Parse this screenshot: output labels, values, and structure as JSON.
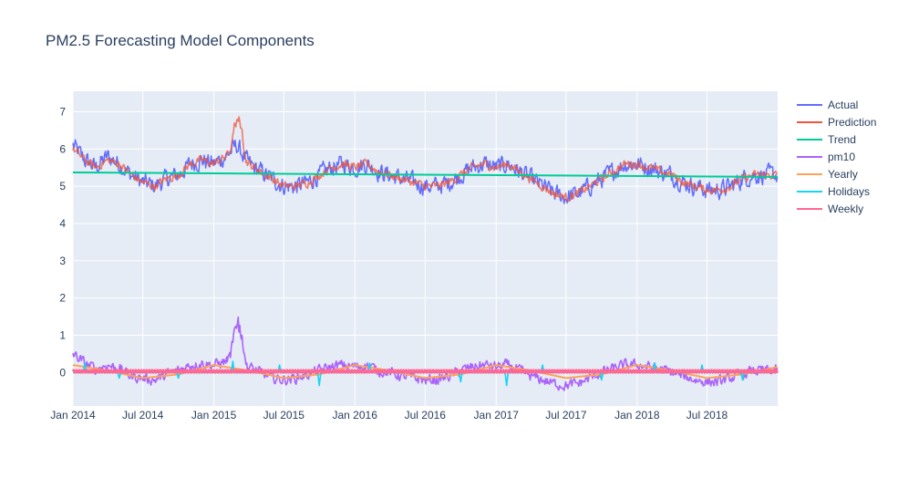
{
  "chart_data": {
    "type": "line",
    "title": "PM2.5 Forecasting Model Components",
    "xlabel": "",
    "ylabel": "",
    "x_range": [
      "2014-01-01",
      "2018-12-31"
    ],
    "x_ticks": [
      {
        "date": "2014-01-01",
        "label": "Jan 2014"
      },
      {
        "date": "2014-07-01",
        "label": "Jul 2014"
      },
      {
        "date": "2015-01-01",
        "label": "Jan 2015"
      },
      {
        "date": "2015-07-01",
        "label": "Jul 2015"
      },
      {
        "date": "2016-01-01",
        "label": "Jan 2016"
      },
      {
        "date": "2016-07-01",
        "label": "Jul 2016"
      },
      {
        "date": "2017-01-01",
        "label": "Jan 2017"
      },
      {
        "date": "2017-07-01",
        "label": "Jul 2017"
      },
      {
        "date": "2018-01-01",
        "label": "Jan 2018"
      },
      {
        "date": "2018-07-01",
        "label": "Jul 2018"
      }
    ],
    "ylim": [
      -0.9,
      7.55
    ],
    "y_ticks": [
      0,
      1,
      2,
      3,
      4,
      5,
      6,
      7
    ],
    "grid": true,
    "legend": "right",
    "series": [
      {
        "name": "Actual",
        "color": "#636efa",
        "points": [
          [
            "2014-01-01",
            6.1
          ],
          [
            "2014-02-01",
            5.7
          ],
          [
            "2014-03-01",
            5.5
          ],
          [
            "2014-04-01",
            5.8
          ],
          [
            "2014-05-01",
            5.6
          ],
          [
            "2014-06-01",
            5.3
          ],
          [
            "2014-07-01",
            5.1
          ],
          [
            "2014-08-01",
            5.0
          ],
          [
            "2014-09-01",
            5.2
          ],
          [
            "2014-10-01",
            5.3
          ],
          [
            "2014-11-01",
            5.6
          ],
          [
            "2014-12-01",
            5.7
          ],
          [
            "2015-01-01",
            5.6
          ],
          [
            "2015-02-01",
            5.8
          ],
          [
            "2015-03-01",
            6.1
          ],
          [
            "2015-04-01",
            5.6
          ],
          [
            "2015-05-01",
            5.4
          ],
          [
            "2015-06-01",
            5.2
          ],
          [
            "2015-07-01",
            5.0
          ],
          [
            "2015-08-01",
            5.0
          ],
          [
            "2015-09-01",
            5.1
          ],
          [
            "2015-10-01",
            5.3
          ],
          [
            "2015-11-01",
            5.5
          ],
          [
            "2015-12-01",
            5.6
          ],
          [
            "2016-01-01",
            5.5
          ],
          [
            "2016-02-01",
            5.6
          ],
          [
            "2016-03-01",
            5.4
          ],
          [
            "2016-04-01",
            5.3
          ],
          [
            "2016-05-01",
            5.2
          ],
          [
            "2016-06-01",
            5.1
          ],
          [
            "2016-07-01",
            5.0
          ],
          [
            "2016-08-01",
            5.0
          ],
          [
            "2016-09-01",
            5.1
          ],
          [
            "2016-10-01",
            5.3
          ],
          [
            "2016-11-01",
            5.5
          ],
          [
            "2016-12-01",
            5.6
          ],
          [
            "2017-01-01",
            5.5
          ],
          [
            "2017-02-01",
            5.6
          ],
          [
            "2017-03-01",
            5.4
          ],
          [
            "2017-04-01",
            5.2
          ],
          [
            "2017-05-01",
            5.0
          ],
          [
            "2017-06-01",
            4.8
          ],
          [
            "2017-07-01",
            4.7
          ],
          [
            "2017-08-01",
            4.8
          ],
          [
            "2017-09-01",
            5.0
          ],
          [
            "2017-10-01",
            5.2
          ],
          [
            "2017-11-01",
            5.4
          ],
          [
            "2017-12-01",
            5.6
          ],
          [
            "2018-01-01",
            5.6
          ],
          [
            "2018-02-01",
            5.5
          ],
          [
            "2018-03-01",
            5.4
          ],
          [
            "2018-04-01",
            5.3
          ],
          [
            "2018-05-01",
            5.1
          ],
          [
            "2018-06-01",
            5.0
          ],
          [
            "2018-07-01",
            4.9
          ],
          [
            "2018-08-01",
            4.9
          ],
          [
            "2018-09-01",
            5.0
          ],
          [
            "2018-10-01",
            5.2
          ],
          [
            "2018-11-01",
            5.3
          ],
          [
            "2018-12-31",
            5.3
          ]
        ]
      },
      {
        "name": "Prediction",
        "color": "#ef553b",
        "points": [
          [
            "2014-01-01",
            6.0
          ],
          [
            "2014-02-01",
            5.7
          ],
          [
            "2014-03-01",
            5.5
          ],
          [
            "2014-04-01",
            5.7
          ],
          [
            "2014-05-01",
            5.6
          ],
          [
            "2014-06-01",
            5.3
          ],
          [
            "2014-07-01",
            5.1
          ],
          [
            "2014-08-01",
            5.0
          ],
          [
            "2014-09-01",
            5.2
          ],
          [
            "2014-10-01",
            5.3
          ],
          [
            "2014-11-01",
            5.6
          ],
          [
            "2014-12-01",
            5.7
          ],
          [
            "2015-01-01",
            5.6
          ],
          [
            "2015-02-01",
            5.8
          ],
          [
            "2015-03-01",
            6.2
          ],
          [
            "2015-04-01",
            5.6
          ],
          [
            "2015-05-01",
            5.4
          ],
          [
            "2015-06-01",
            5.2
          ],
          [
            "2015-07-01",
            5.0
          ],
          [
            "2015-08-01",
            5.0
          ],
          [
            "2015-09-01",
            5.1
          ],
          [
            "2015-10-01",
            5.3
          ],
          [
            "2015-11-01",
            5.5
          ],
          [
            "2015-12-01",
            5.6
          ],
          [
            "2016-01-01",
            5.5
          ],
          [
            "2016-02-01",
            5.6
          ],
          [
            "2016-03-01",
            5.4
          ],
          [
            "2016-04-01",
            5.3
          ],
          [
            "2016-05-01",
            5.2
          ],
          [
            "2016-06-01",
            5.1
          ],
          [
            "2016-07-01",
            5.0
          ],
          [
            "2016-08-01",
            5.0
          ],
          [
            "2016-09-01",
            5.1
          ],
          [
            "2016-10-01",
            5.3
          ],
          [
            "2016-11-01",
            5.5
          ],
          [
            "2016-12-01",
            5.6
          ],
          [
            "2017-01-01",
            5.5
          ],
          [
            "2017-02-01",
            5.6
          ],
          [
            "2017-03-01",
            5.4
          ],
          [
            "2017-04-01",
            5.2
          ],
          [
            "2017-05-01",
            5.0
          ],
          [
            "2017-06-01",
            4.8
          ],
          [
            "2017-07-01",
            4.7
          ],
          [
            "2017-08-01",
            4.8
          ],
          [
            "2017-09-01",
            5.0
          ],
          [
            "2017-10-01",
            5.2
          ],
          [
            "2017-11-01",
            5.4
          ],
          [
            "2017-12-01",
            5.6
          ],
          [
            "2018-01-01",
            5.6
          ],
          [
            "2018-02-01",
            5.5
          ],
          [
            "2018-03-01",
            5.4
          ],
          [
            "2018-04-01",
            5.3
          ],
          [
            "2018-05-01",
            5.1
          ],
          [
            "2018-06-01",
            5.0
          ],
          [
            "2018-07-01",
            4.9
          ],
          [
            "2018-08-01",
            4.9
          ],
          [
            "2018-09-01",
            5.0
          ],
          [
            "2018-10-01",
            5.2
          ],
          [
            "2018-11-01",
            5.3
          ],
          [
            "2018-12-31",
            5.3
          ]
        ],
        "peak": [
          "2015-03-05",
          7.1
        ]
      },
      {
        "name": "Trend",
        "color": "#00cc96",
        "points": [
          [
            "2014-01-01",
            5.37
          ],
          [
            "2016-01-01",
            5.32
          ],
          [
            "2018-12-31",
            5.25
          ]
        ]
      },
      {
        "name": "pm10",
        "color": "#ab63fa",
        "points": [
          [
            "2014-01-01",
            0.5
          ],
          [
            "2014-02-01",
            0.25
          ],
          [
            "2014-03-01",
            0.1
          ],
          [
            "2014-04-01",
            0.2
          ],
          [
            "2014-05-01",
            0.1
          ],
          [
            "2014-06-01",
            -0.1
          ],
          [
            "2014-07-01",
            -0.15
          ],
          [
            "2014-08-01",
            -0.2
          ],
          [
            "2014-09-01",
            -0.05
          ],
          [
            "2014-10-01",
            0.05
          ],
          [
            "2014-11-01",
            0.2
          ],
          [
            "2014-12-01",
            0.25
          ],
          [
            "2015-01-01",
            0.2
          ],
          [
            "2015-02-01",
            0.3
          ],
          [
            "2015-03-01",
            0.7
          ],
          [
            "2015-04-01",
            0.15
          ],
          [
            "2015-05-01",
            0.0
          ],
          [
            "2015-06-01",
            -0.15
          ],
          [
            "2015-07-01",
            -0.2
          ],
          [
            "2015-08-01",
            -0.15
          ],
          [
            "2015-09-01",
            -0.05
          ],
          [
            "2015-10-01",
            0.05
          ],
          [
            "2015-11-01",
            0.15
          ],
          [
            "2015-12-01",
            0.2
          ],
          [
            "2016-01-01",
            0.15
          ],
          [
            "2016-02-01",
            0.2
          ],
          [
            "2016-03-01",
            0.05
          ],
          [
            "2016-04-01",
            0.0
          ],
          [
            "2016-05-01",
            -0.1
          ],
          [
            "2016-06-01",
            -0.15
          ],
          [
            "2016-07-01",
            -0.2
          ],
          [
            "2016-08-01",
            -0.2
          ],
          [
            "2016-09-01",
            -0.1
          ],
          [
            "2016-10-01",
            0.05
          ],
          [
            "2016-11-01",
            0.15
          ],
          [
            "2016-12-01",
            0.2
          ],
          [
            "2017-01-01",
            0.15
          ],
          [
            "2017-02-01",
            0.2
          ],
          [
            "2017-03-01",
            0.05
          ],
          [
            "2017-04-01",
            -0.1
          ],
          [
            "2017-05-01",
            -0.2
          ],
          [
            "2017-06-01",
            -0.3
          ],
          [
            "2017-07-01",
            -0.35
          ],
          [
            "2017-08-01",
            -0.3
          ],
          [
            "2017-09-01",
            -0.15
          ],
          [
            "2017-10-01",
            0.0
          ],
          [
            "2017-11-01",
            0.1
          ],
          [
            "2017-12-01",
            0.2
          ],
          [
            "2018-01-01",
            0.2
          ],
          [
            "2018-02-01",
            0.15
          ],
          [
            "2018-03-01",
            0.1
          ],
          [
            "2018-04-01",
            0.0
          ],
          [
            "2018-05-01",
            -0.1
          ],
          [
            "2018-06-01",
            -0.2
          ],
          [
            "2018-07-01",
            -0.25
          ],
          [
            "2018-08-01",
            -0.25
          ],
          [
            "2018-09-01",
            -0.15
          ],
          [
            "2018-10-01",
            -0.05
          ],
          [
            "2018-11-01",
            0.05
          ],
          [
            "2018-12-31",
            0.05
          ]
        ],
        "peak": [
          "2015-03-05",
          1.65
        ]
      },
      {
        "name": "Yearly",
        "color": "#ffa15a",
        "points": [
          [
            "2014-01-01",
            0.2
          ],
          [
            "2014-04-01",
            0.05
          ],
          [
            "2014-07-01",
            -0.15
          ],
          [
            "2014-10-01",
            -0.05
          ],
          [
            "2015-01-01",
            0.2
          ],
          [
            "2015-04-01",
            0.05
          ],
          [
            "2015-07-01",
            -0.15
          ],
          [
            "2015-10-01",
            -0.05
          ],
          [
            "2016-01-01",
            0.2
          ],
          [
            "2016-04-01",
            0.05
          ],
          [
            "2016-07-01",
            -0.15
          ],
          [
            "2016-10-01",
            -0.05
          ],
          [
            "2017-01-01",
            0.2
          ],
          [
            "2017-04-01",
            0.05
          ],
          [
            "2017-07-01",
            -0.15
          ],
          [
            "2017-10-01",
            -0.05
          ],
          [
            "2018-01-01",
            0.2
          ],
          [
            "2018-04-01",
            0.05
          ],
          [
            "2018-07-01",
            -0.15
          ],
          [
            "2018-10-01",
            -0.05
          ],
          [
            "2018-12-31",
            0.15
          ]
        ]
      },
      {
        "name": "Holidays",
        "color": "#19d3f3",
        "points": [
          [
            "2014-01-01",
            0.0
          ],
          [
            "2018-12-31",
            0.0
          ]
        ],
        "spikes": [
          [
            "2014-02-01",
            0.25
          ],
          [
            "2014-05-01",
            -0.15
          ],
          [
            "2014-10-01",
            -0.15
          ],
          [
            "2015-02-19",
            0.3
          ],
          [
            "2015-06-20",
            0.2
          ],
          [
            "2015-10-01",
            -0.35
          ],
          [
            "2016-02-08",
            0.25
          ],
          [
            "2016-10-01",
            -0.25
          ],
          [
            "2017-01-28",
            -0.35
          ],
          [
            "2017-05-01",
            0.2
          ],
          [
            "2017-10-01",
            -0.2
          ],
          [
            "2018-02-16",
            0.25
          ],
          [
            "2018-06-18",
            0.2
          ],
          [
            "2018-10-01",
            -0.2
          ]
        ]
      },
      {
        "name": "Weekly",
        "color": "#ff6692",
        "points": [
          [
            "2014-01-01",
            0.03
          ],
          [
            "2018-12-31",
            0.03
          ]
        ],
        "amplitude": 0.04
      }
    ]
  }
}
